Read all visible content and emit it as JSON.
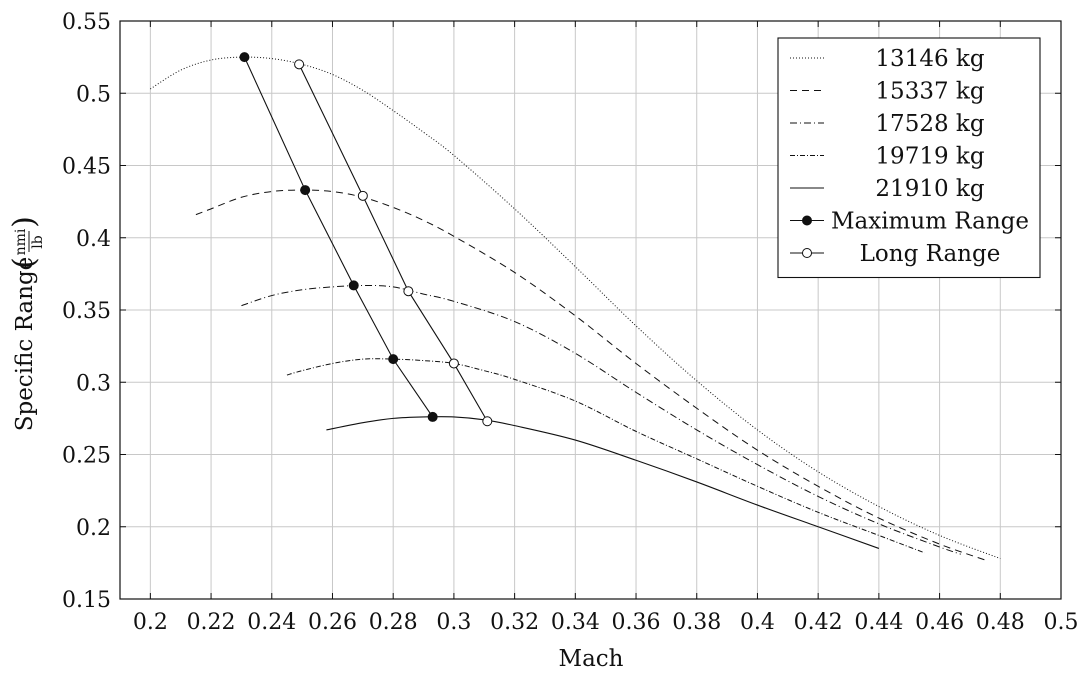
{
  "chart_data": {
    "type": "line",
    "xlabel": "Mach",
    "ylabel_main": "Specific Range",
    "ylabel_num": "nmi",
    "ylabel_den": "lb",
    "xlim": [
      0.19,
      0.5
    ],
    "ylim": [
      0.15,
      0.55
    ],
    "xticks": [
      0.2,
      0.22,
      0.24,
      0.26,
      0.28,
      0.3,
      0.32,
      0.34,
      0.36,
      0.38,
      0.4,
      0.42,
      0.44,
      0.46,
      0.48,
      0.5
    ],
    "yticks": [
      0.15,
      0.2,
      0.25,
      0.3,
      0.35,
      0.4,
      0.45,
      0.5,
      0.55
    ],
    "grid": true,
    "legend_position": "top-right",
    "series": [
      {
        "name": "13146 kg",
        "style": "dotted",
        "x": [
          0.2,
          0.21,
          0.22,
          0.23,
          0.24,
          0.25,
          0.26,
          0.27,
          0.28,
          0.29,
          0.3,
          0.32,
          0.34,
          0.36,
          0.38,
          0.4,
          0.42,
          0.44,
          0.46,
          0.48
        ],
        "y": [
          0.503,
          0.516,
          0.523,
          0.525,
          0.524,
          0.52,
          0.513,
          0.502,
          0.488,
          0.473,
          0.457,
          0.42,
          0.38,
          0.339,
          0.301,
          0.267,
          0.238,
          0.214,
          0.194,
          0.178
        ]
      },
      {
        "name": "15337 kg",
        "style": "dashed",
        "x": [
          0.215,
          0.22,
          0.23,
          0.24,
          0.25,
          0.26,
          0.27,
          0.28,
          0.29,
          0.3,
          0.32,
          0.34,
          0.36,
          0.38,
          0.4,
          0.42,
          0.44,
          0.46,
          0.475
        ],
        "y": [
          0.416,
          0.42,
          0.428,
          0.432,
          0.433,
          0.432,
          0.428,
          0.421,
          0.412,
          0.401,
          0.376,
          0.346,
          0.313,
          0.282,
          0.253,
          0.228,
          0.206,
          0.188,
          0.177
        ]
      },
      {
        "name": "17528 kg",
        "style": "dashdot",
        "x": [
          0.23,
          0.24,
          0.25,
          0.26,
          0.27,
          0.28,
          0.29,
          0.3,
          0.32,
          0.34,
          0.36,
          0.38,
          0.4,
          0.42,
          0.44,
          0.46,
          0.467
        ],
        "y": [
          0.353,
          0.36,
          0.364,
          0.366,
          0.367,
          0.366,
          0.361,
          0.356,
          0.342,
          0.32,
          0.293,
          0.267,
          0.243,
          0.221,
          0.202,
          0.186,
          0.181
        ]
      },
      {
        "name": "19719 kg",
        "style": "dashdotdense",
        "x": [
          0.245,
          0.25,
          0.26,
          0.27,
          0.28,
          0.29,
          0.3,
          0.31,
          0.32,
          0.34,
          0.36,
          0.38,
          0.4,
          0.42,
          0.44,
          0.455
        ],
        "y": [
          0.305,
          0.308,
          0.313,
          0.316,
          0.316,
          0.315,
          0.313,
          0.308,
          0.302,
          0.287,
          0.266,
          0.247,
          0.228,
          0.21,
          0.194,
          0.182
        ]
      },
      {
        "name": "21910 kg",
        "style": "solid",
        "x": [
          0.258,
          0.27,
          0.28,
          0.29,
          0.3,
          0.31,
          0.32,
          0.34,
          0.36,
          0.38,
          0.4,
          0.42,
          0.44
        ],
        "y": [
          0.267,
          0.272,
          0.275,
          0.276,
          0.276,
          0.274,
          0.27,
          0.26,
          0.246,
          0.231,
          0.215,
          0.2,
          0.185
        ]
      },
      {
        "name": "Maximum Range",
        "style": "solid-marker-filled",
        "x": [
          0.231,
          0.251,
          0.267,
          0.28,
          0.293
        ],
        "y": [
          0.525,
          0.433,
          0.367,
          0.316,
          0.276
        ]
      },
      {
        "name": "Long Range",
        "style": "solid-marker-open",
        "x": [
          0.249,
          0.27,
          0.285,
          0.3,
          0.311
        ],
        "y": [
          0.52,
          0.429,
          0.363,
          0.313,
          0.273
        ]
      }
    ]
  }
}
